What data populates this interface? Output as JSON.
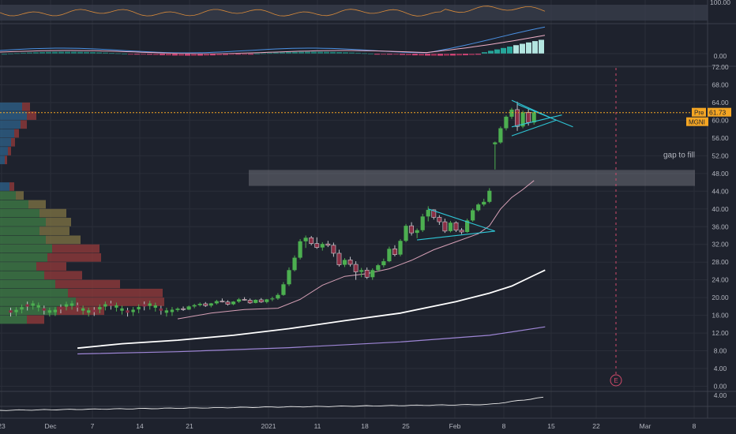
{
  "colors": {
    "background": "#1e222d",
    "grid": "#2a2e39",
    "axis_text": "#b2b5be",
    "bull": "#26a69a",
    "candle_up": "#4caf50",
    "candle_down": "#8b2f45",
    "ma_fast": "#d6a0b6",
    "ma_mid": "#ffffff",
    "ma_slow": "#9e86d6",
    "pattern": "#2ec6d6",
    "last_price": "#f5a623",
    "earnings": "#d14a6b"
  },
  "chart_data": {
    "type": "candlestick",
    "ticker": "MGNI",
    "price_axis": {
      "ylim": [
        0,
        72
      ],
      "ticks": [
        "72.00",
        "68.00",
        "64.00",
        "60.00",
        "56.00",
        "52.00",
        "48.00",
        "44.00",
        "40.00",
        "36.00",
        "32.00",
        "28.00",
        "24.00",
        "20.00",
        "16.00",
        "12.00",
        "8.00",
        "4.00",
        "0.00"
      ]
    },
    "rsi_axis": {
      "ticks": [
        "100.00"
      ]
    },
    "macd_axis": {
      "ticks": [
        "0.00"
      ]
    },
    "lower_axis": {
      "ticks": [
        "4.00"
      ]
    },
    "x_ticks": [
      "23",
      "Dec",
      "7",
      "14",
      "21",
      "2021",
      "11",
      "18",
      "25",
      "Feb",
      "8",
      "15",
      "22",
      "Mar",
      "8"
    ],
    "last_price": {
      "tag": "Pre",
      "value": "61.73",
      "ticker_label": "MGNI"
    },
    "annotations": {
      "gap_label": "gap to fill",
      "gap_range": [
        45.2,
        48.8
      ],
      "earnings_marker": "E"
    },
    "candles": [
      [
        17.2,
        17.8,
        16.8,
        17.5
      ],
      [
        17.5,
        18.0,
        17.0,
        17.3
      ],
      [
        17.3,
        18.2,
        17.2,
        18.0
      ],
      [
        18.0,
        18.6,
        17.6,
        18.3
      ],
      [
        18.3,
        18.9,
        18.0,
        18.6
      ],
      [
        18.6,
        19.0,
        17.9,
        18.2
      ],
      [
        18.2,
        18.8,
        17.8,
        18.7
      ],
      [
        18.7,
        19.5,
        18.4,
        19.2
      ],
      [
        19.2,
        19.8,
        18.9,
        19.0
      ],
      [
        19.0,
        19.4,
        18.2,
        18.5
      ],
      [
        18.5,
        19.2,
        18.3,
        19.1
      ],
      [
        19.1,
        19.9,
        18.8,
        19.6
      ],
      [
        19.6,
        20.1,
        19.3,
        19.4
      ],
      [
        19.4,
        19.8,
        18.6,
        18.8
      ],
      [
        18.8,
        19.6,
        18.7,
        19.5
      ],
      [
        19.5,
        19.9,
        18.8,
        19.0
      ],
      [
        19.0,
        19.7,
        18.7,
        19.6
      ],
      [
        19.6,
        20.2,
        19.2,
        19.8
      ],
      [
        19.8,
        21.0,
        19.5,
        20.6
      ],
      [
        20.6,
        23.5,
        20.4,
        23.0
      ],
      [
        23.0,
        26.8,
        22.6,
        26.2
      ],
      [
        26.2,
        29.5,
        25.9,
        29.0
      ],
      [
        29.0,
        33.2,
        28.6,
        32.7
      ],
      [
        32.7,
        34.0,
        31.2,
        33.5
      ],
      [
        33.5,
        33.9,
        31.8,
        32.2
      ],
      [
        32.2,
        33.6,
        31.0,
        31.3
      ],
      [
        31.3,
        32.5,
        30.6,
        32.1
      ],
      [
        32.1,
        32.8,
        31.4,
        31.8
      ],
      [
        31.8,
        32.4,
        29.2,
        30.0
      ],
      [
        30.0,
        30.8,
        27.0,
        27.4
      ],
      [
        27.4,
        28.9,
        26.9,
        28.5
      ],
      [
        28.5,
        29.2,
        27.0,
        27.5
      ],
      [
        27.5,
        28.2,
        24.0,
        25.8
      ],
      [
        25.8,
        26.7,
        24.6,
        26.2
      ],
      [
        26.2,
        26.8,
        24.2,
        24.6
      ],
      [
        24.6,
        26.6,
        24.0,
        26.2
      ],
      [
        26.2,
        27.6,
        25.9,
        27.3
      ],
      [
        27.3,
        28.8,
        26.8,
        28.2
      ],
      [
        28.2,
        31.5,
        28.0,
        31.0
      ],
      [
        31.0,
        31.8,
        29.3,
        29.7
      ],
      [
        29.7,
        33.2,
        29.3,
        32.8
      ],
      [
        32.8,
        36.6,
        32.5,
        36.2
      ],
      [
        36.2,
        37.0,
        34.0,
        34.6
      ],
      [
        34.6,
        35.6,
        33.4,
        35.2
      ],
      [
        35.2,
        38.9,
        34.8,
        38.3
      ],
      [
        38.3,
        40.6,
        37.2,
        39.8
      ],
      [
        39.8,
        39.9,
        37.6,
        38.1
      ],
      [
        38.1,
        38.6,
        36.4,
        37.1
      ],
      [
        37.1,
        37.8,
        34.6,
        35.0
      ],
      [
        35.0,
        37.3,
        34.7,
        36.9
      ],
      [
        36.9,
        37.2,
        34.8,
        35.2
      ],
      [
        35.2,
        35.7,
        34.3,
        34.8
      ],
      [
        34.8,
        37.8,
        34.6,
        37.4
      ],
      [
        37.4,
        40.1,
        37.1,
        39.7
      ],
      [
        39.7,
        41.3,
        39.4,
        41.0
      ],
      [
        41.0,
        42.3,
        40.6,
        41.6
      ],
      [
        41.6,
        44.7,
        41.3,
        44.1
      ],
      [
        54.6,
        55.2,
        48.9,
        55.0
      ],
      [
        55.0,
        58.6,
        54.7,
        58.2
      ],
      [
        58.2,
        61.1,
        57.7,
        60.8
      ],
      [
        60.8,
        62.8,
        60.3,
        62.4
      ],
      [
        62.4,
        64.2,
        57.6,
        58.6
      ],
      [
        58.6,
        62.2,
        58.2,
        61.8
      ],
      [
        61.8,
        62.6,
        58.8,
        59.5
      ],
      [
        59.5,
        62.2,
        59.0,
        61.8
      ]
    ],
    "volume_profile": [
      {
        "price": 63.0,
        "up": 28,
        "down": 10
      },
      {
        "price": 61.0,
        "up": 34,
        "down": 12
      },
      {
        "price": 59.0,
        "up": 26,
        "down": 8
      },
      {
        "price": 57.0,
        "up": 18,
        "down": 6
      },
      {
        "price": 55.0,
        "up": 14,
        "down": 5
      },
      {
        "price": 53.0,
        "up": 10,
        "down": 4
      },
      {
        "price": 51.0,
        "up": 6,
        "down": 3
      },
      {
        "price": 45.0,
        "up": 12,
        "down": 6
      },
      {
        "price": 43.0,
        "up": 20,
        "down": 10
      },
      {
        "price": 41.0,
        "up": 36,
        "down": 22
      },
      {
        "price": 39.0,
        "up": 50,
        "down": 34
      },
      {
        "price": 37.0,
        "up": 58,
        "down": 32
      },
      {
        "price": 35.0,
        "up": 50,
        "down": 38
      },
      {
        "price": 33.0,
        "up": 58,
        "down": 44
      },
      {
        "price": 31.0,
        "up": 66,
        "down": 60
      },
      {
        "price": 29.0,
        "up": 60,
        "down": 68
      },
      {
        "price": 27.0,
        "up": 46,
        "down": 38
      },
      {
        "price": 25.0,
        "up": 56,
        "down": 48
      },
      {
        "price": 23.0,
        "up": 70,
        "down": 82
      },
      {
        "price": 21.0,
        "up": 86,
        "down": 120
      },
      {
        "price": 19.0,
        "up": 96,
        "down": 112
      },
      {
        "price": 17.0,
        "up": 72,
        "down": 60
      },
      {
        "price": 15.0,
        "up": 34,
        "down": 22
      }
    ],
    "moving_averages": {
      "fast": [
        [
          0,
          15.2
        ],
        [
          6,
          16.5
        ],
        [
          12,
          17.3
        ],
        [
          18,
          17.6
        ],
        [
          22,
          19.6
        ],
        [
          26,
          22.8
        ],
        [
          30,
          24.8
        ],
        [
          34,
          25.4
        ],
        [
          38,
          26.5
        ],
        [
          42,
          28.4
        ],
        [
          46,
          30.8
        ],
        [
          50,
          32.6
        ],
        [
          54,
          34.4
        ],
        [
          56,
          36.2
        ],
        [
          58,
          40.0
        ],
        [
          60,
          42.6
        ],
        [
          62,
          44.4
        ],
        [
          64,
          46.4
        ]
      ],
      "mid": [
        [
          -18,
          8.6
        ],
        [
          -10,
          9.6
        ],
        [
          0,
          10.4
        ],
        [
          10,
          11.5
        ],
        [
          20,
          13.0
        ],
        [
          30,
          14.8
        ],
        [
          40,
          16.5
        ],
        [
          50,
          19.1
        ],
        [
          56,
          21.0
        ],
        [
          60,
          22.6
        ],
        [
          64,
          25.0
        ],
        [
          66,
          26.2
        ]
      ],
      "slow": [
        [
          -18,
          7.3
        ],
        [
          0,
          7.8
        ],
        [
          20,
          8.7
        ],
        [
          40,
          10.0
        ],
        [
          56,
          11.5
        ],
        [
          66,
          13.4
        ]
      ]
    },
    "patterns": [
      {
        "name": "flag-1",
        "lines": [
          [
            [
              45,
              40.0
            ],
            [
              57,
              35.0
            ],
            [
              43,
              33.0
            ]
          ]
        ]
      },
      {
        "name": "pennant-2",
        "lines": [
          [
            [
              60,
              64.5
            ],
            [
              68,
              60.0
            ]
          ],
          [
            [
              60,
              56.5
            ],
            [
              68,
              60.0
            ]
          ],
          [
            [
              61,
              63.6
            ],
            [
              71,
              58.5
            ]
          ],
          [
            [
              60,
              58.5
            ],
            [
              69,
              61.2
            ]
          ]
        ]
      }
    ]
  }
}
